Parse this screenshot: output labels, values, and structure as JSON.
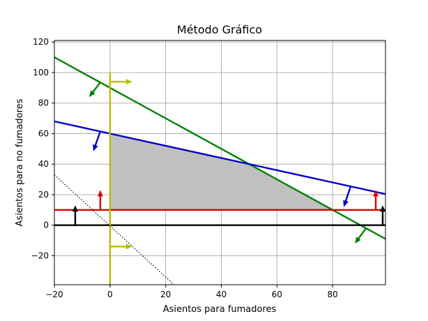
{
  "chart_data": {
    "type": "line",
    "title": "Método Gráfico",
    "xlabel": "Asientos para fumadores",
    "ylabel": "Asientos para no fumadores",
    "xlim": [
      -20,
      99
    ],
    "ylim": [
      -39,
      121
    ],
    "xticks": [
      -20,
      0,
      20,
      40,
      60,
      80
    ],
    "yticks": [
      -20,
      0,
      20,
      40,
      60,
      80,
      100,
      120
    ],
    "grid": true,
    "feasible_region": {
      "color": "#c0c0c0",
      "vertices": [
        [
          0,
          10
        ],
        [
          0,
          60
        ],
        [
          50,
          40
        ],
        [
          80,
          10
        ]
      ]
    },
    "series": [
      {
        "color": "#008000",
        "points": [
          [
            -20,
            110
          ],
          [
            99,
            -9
          ]
        ],
        "arrows": [
          [
            [
              -3.5,
              93.5
            ],
            [
              -7.5,
              84
            ]
          ],
          [
            [
              92,
              -2
            ],
            [
              88,
              -12
            ]
          ]
        ]
      },
      {
        "color": "#0000cc",
        "points": [
          [
            -20,
            68
          ],
          [
            99,
            20.4
          ]
        ],
        "arrows": [
          [
            [
              -3.5,
              61.4
            ],
            [
              -6,
              48.5
            ]
          ],
          [
            [
              86.5,
              25.4
            ],
            [
              84,
              12
            ]
          ]
        ]
      },
      {
        "color": "#dd0000",
        "points": [
          [
            -20,
            10
          ],
          [
            99,
            10
          ]
        ],
        "arrows": [
          [
            [
              -3.5,
              10
            ],
            [
              -3.5,
              23
            ]
          ],
          [
            [
              95.5,
              10
            ],
            [
              95.5,
              23
            ]
          ]
        ]
      },
      {
        "color": "#000000",
        "points": [
          [
            -20,
            0
          ],
          [
            99,
            0
          ]
        ],
        "arrows": [
          [
            [
              -12.5,
              0
            ],
            [
              -12.5,
              13
            ]
          ],
          [
            [
              98,
              0
            ],
            [
              98,
              13
            ]
          ]
        ]
      },
      {
        "color": "#bbbb00",
        "points": [
          [
            0,
            -39
          ],
          [
            0,
            100
          ]
        ],
        "arrows": [
          [
            [
              0,
              94
            ],
            [
              8,
              94
            ]
          ],
          [
            [
              0,
              -14
            ],
            [
              8,
              -14
            ]
          ]
        ]
      },
      {
        "color": "#000000",
        "dashed": true,
        "points": [
          [
            -20,
            33
          ],
          [
            23,
            -39
          ]
        ]
      }
    ]
  }
}
